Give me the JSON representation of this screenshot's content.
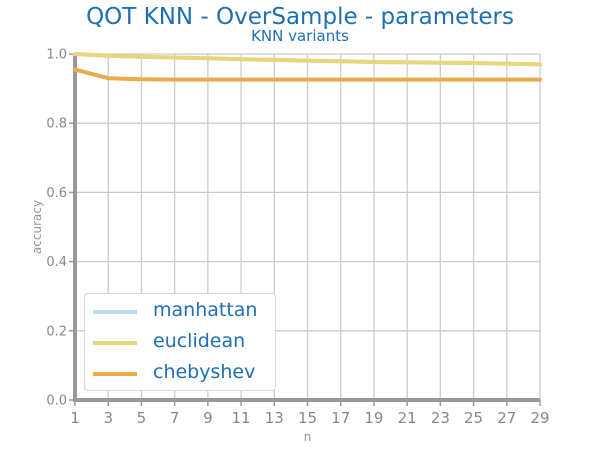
{
  "chart_data": {
    "type": "line",
    "title": "QOT KNN - OverSample - parameters",
    "subtitle": "KNN variants",
    "xlabel": "n",
    "ylabel": "accuracy",
    "x": [
      1,
      3,
      5,
      7,
      9,
      11,
      13,
      15,
      17,
      19,
      21,
      23,
      25,
      27,
      29
    ],
    "xlim": [
      1,
      29
    ],
    "ylim": [
      0.0,
      1.0
    ],
    "xticks": [
      "1",
      "3",
      "5",
      "7",
      "9",
      "11",
      "13",
      "15",
      "17",
      "19",
      "21",
      "23",
      "25",
      "27",
      "29"
    ],
    "yticks": [
      "0.0",
      "0.2",
      "0.4",
      "0.6",
      "0.8",
      "1.0"
    ],
    "grid": true,
    "legend_position": "bottom-left",
    "series": [
      {
        "name": "manhattan",
        "color": "#b8dde8",
        "values": [
          1.0,
          0.995,
          0.992,
          0.99,
          0.988,
          0.985,
          0.983,
          0.981,
          0.979,
          0.977,
          0.976,
          0.975,
          0.974,
          0.972,
          0.97
        ]
      },
      {
        "name": "euclidean",
        "color": "#e8d77a",
        "values": [
          1.0,
          0.995,
          0.992,
          0.99,
          0.988,
          0.985,
          0.983,
          0.981,
          0.979,
          0.977,
          0.976,
          0.975,
          0.974,
          0.972,
          0.97
        ]
      },
      {
        "name": "chebyshev",
        "color": "#e8ad4a",
        "values": [
          0.955,
          0.93,
          0.927,
          0.926,
          0.926,
          0.926,
          0.926,
          0.926,
          0.926,
          0.926,
          0.926,
          0.926,
          0.926,
          0.926,
          0.926
        ]
      }
    ]
  }
}
